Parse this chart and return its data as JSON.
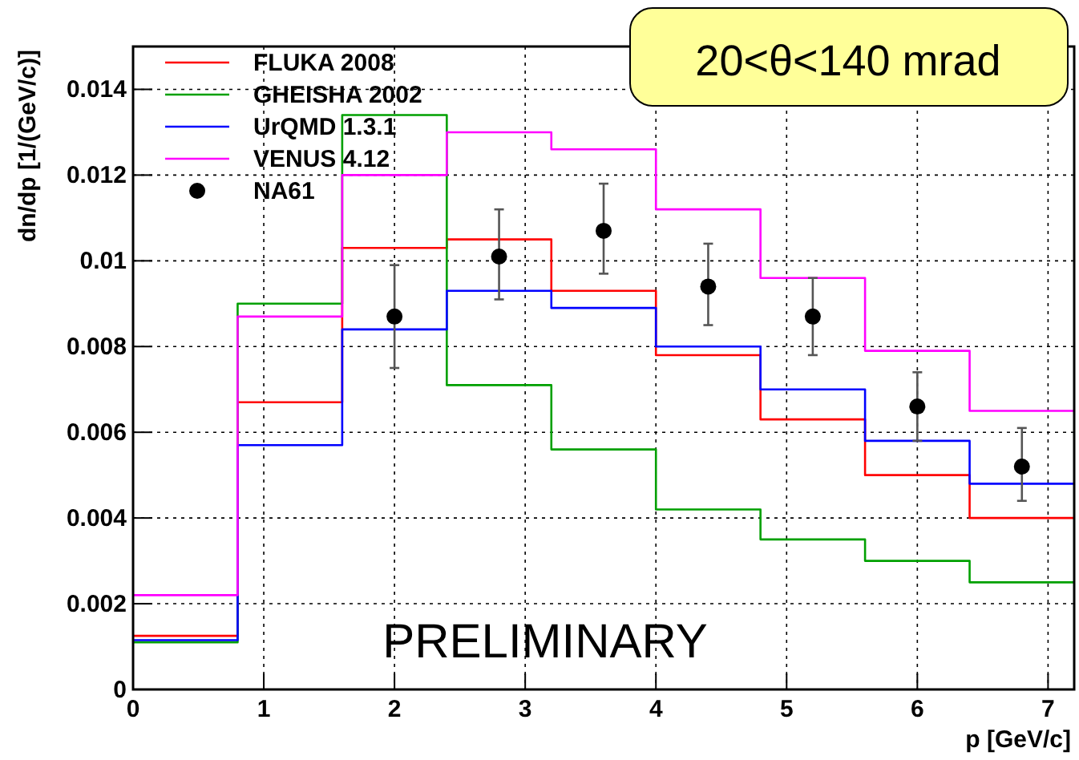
{
  "chart_data": {
    "type": "step",
    "xlabel": "p [GeV/c]",
    "ylabel": "dn/dp [1/(GeV/c)]",
    "xlim": [
      0,
      7.2
    ],
    "ylim": [
      0,
      0.015
    ],
    "xticks": [
      0,
      1,
      2,
      3,
      4,
      5,
      6,
      7
    ],
    "yticks": [
      0,
      0.002,
      0.004,
      0.006,
      0.008,
      0.01,
      0.012,
      0.014
    ],
    "grid": true,
    "legend": "top left",
    "annotations": [
      "20<θ<140 mrad",
      "PRELIMINARY"
    ],
    "series": [
      {
        "name": "FLUKA 2008",
        "color": "#ff0000",
        "x": [
          0,
          0.8,
          1.6,
          2.4,
          3.2,
          4,
          4.8,
          5.6,
          6.4,
          7.2
        ],
        "values": [
          0.00125,
          0.0067,
          0.0103,
          0.0105,
          0.0093,
          0.0078,
          0.0063,
          0.005,
          0.004,
          0.004
        ]
      },
      {
        "name": "GHEISHA 2002",
        "color": "#00a000",
        "x": [
          0,
          0.8,
          1.6,
          2.4,
          3.2,
          4,
          4.8,
          5.6,
          6.4,
          7.2
        ],
        "values": [
          0.0011,
          0.009,
          0.0134,
          0.0071,
          0.0056,
          0.0042,
          0.0035,
          0.003,
          0.0025,
          0.0025
        ]
      },
      {
        "name": "UrQMD 1.3.1",
        "color": "#0000ff",
        "x": [
          0,
          0.8,
          1.6,
          2.4,
          3.2,
          4,
          4.8,
          5.6,
          6.4,
          7.2
        ],
        "values": [
          0.00115,
          0.0057,
          0.0084,
          0.0093,
          0.0089,
          0.008,
          0.007,
          0.0058,
          0.0048,
          0.0048
        ]
      },
      {
        "name": "VENUS 4.12",
        "color": "#ff00ff",
        "x": [
          0,
          0.8,
          1.6,
          2.4,
          3.2,
          4,
          4.8,
          5.6,
          6.4,
          7.2
        ],
        "values": [
          0.0022,
          0.0087,
          0.012,
          0.013,
          0.0126,
          0.0112,
          0.0096,
          0.0079,
          0.0065,
          0.0065
        ]
      },
      {
        "name": "NA61",
        "type": "scatter",
        "color": "#000000",
        "marker": "circle",
        "x": [
          2,
          2.8,
          3.6,
          4.4,
          5.2,
          6,
          6.8
        ],
        "values": [
          0.0087,
          0.0101,
          0.0107,
          0.0094,
          0.0087,
          0.0066,
          0.0052
        ],
        "errors": [
          [
            0.0075,
            0.0099
          ],
          [
            0.0091,
            0.0112
          ],
          [
            0.0097,
            0.0118
          ],
          [
            0.0085,
            0.0104
          ],
          [
            0.0078,
            0.0096
          ],
          [
            0.0058,
            0.0074
          ],
          [
            0.0044,
            0.0061
          ]
        ]
      }
    ]
  }
}
